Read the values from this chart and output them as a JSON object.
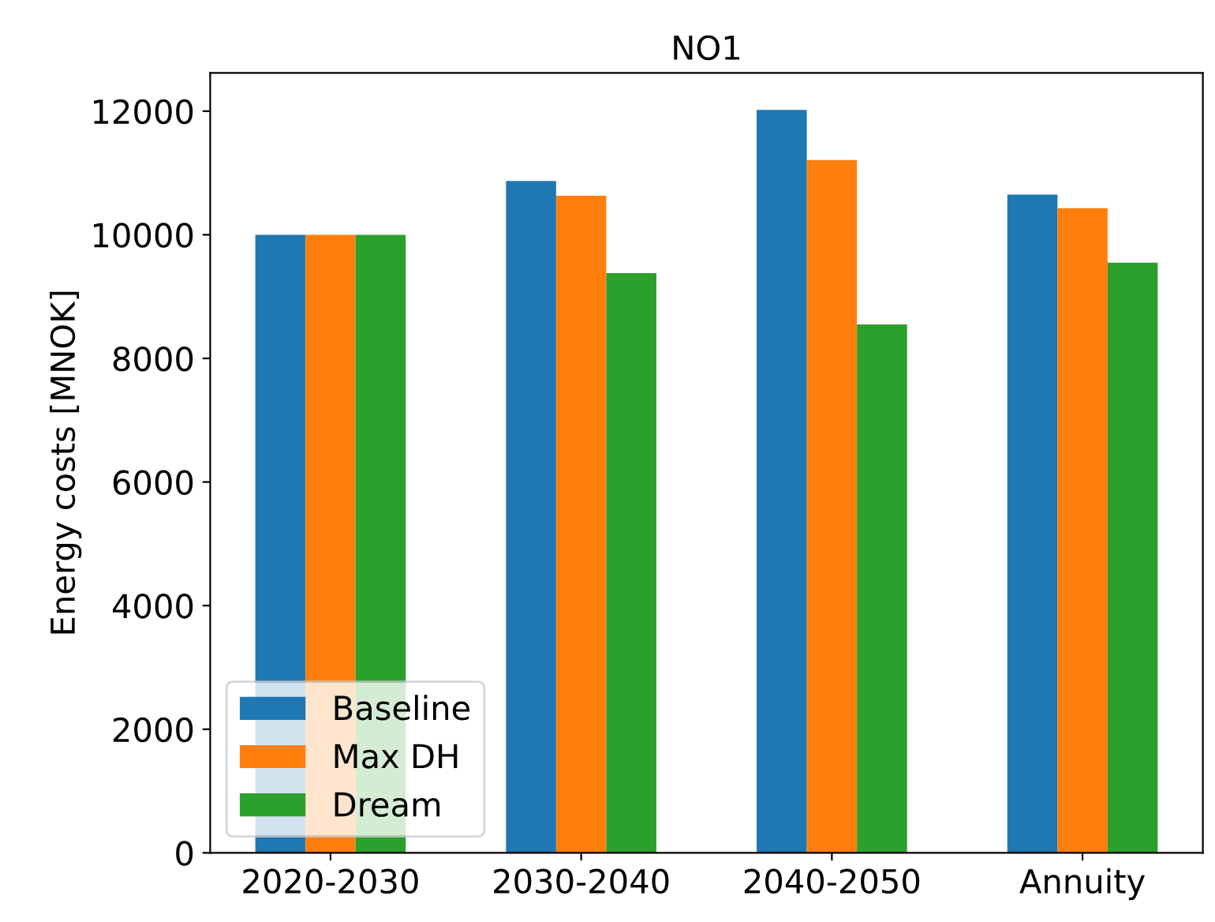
{
  "chart_data": {
    "type": "bar",
    "title": "NO1",
    "ylabel": "Energy costs [MNOK]",
    "categories": [
      "2020-2030",
      "2030-2040",
      "2040-2050",
      "Annuity"
    ],
    "series": [
      {
        "name": "Baseline",
        "color": "#1f77b4",
        "values": [
          10000,
          10870,
          12020,
          10650
        ]
      },
      {
        "name": "Max DH",
        "color": "#ff7f0e",
        "values": [
          10000,
          10630,
          11210,
          10430
        ]
      },
      {
        "name": "Dream",
        "color": "#2ca02c",
        "values": [
          10000,
          9380,
          8550,
          9550
        ]
      }
    ],
    "ylim": [
      0,
      12620
    ],
    "yticks": [
      0,
      2000,
      4000,
      6000,
      8000,
      10000,
      12000
    ],
    "grid": false,
    "legend": "bottom left"
  }
}
